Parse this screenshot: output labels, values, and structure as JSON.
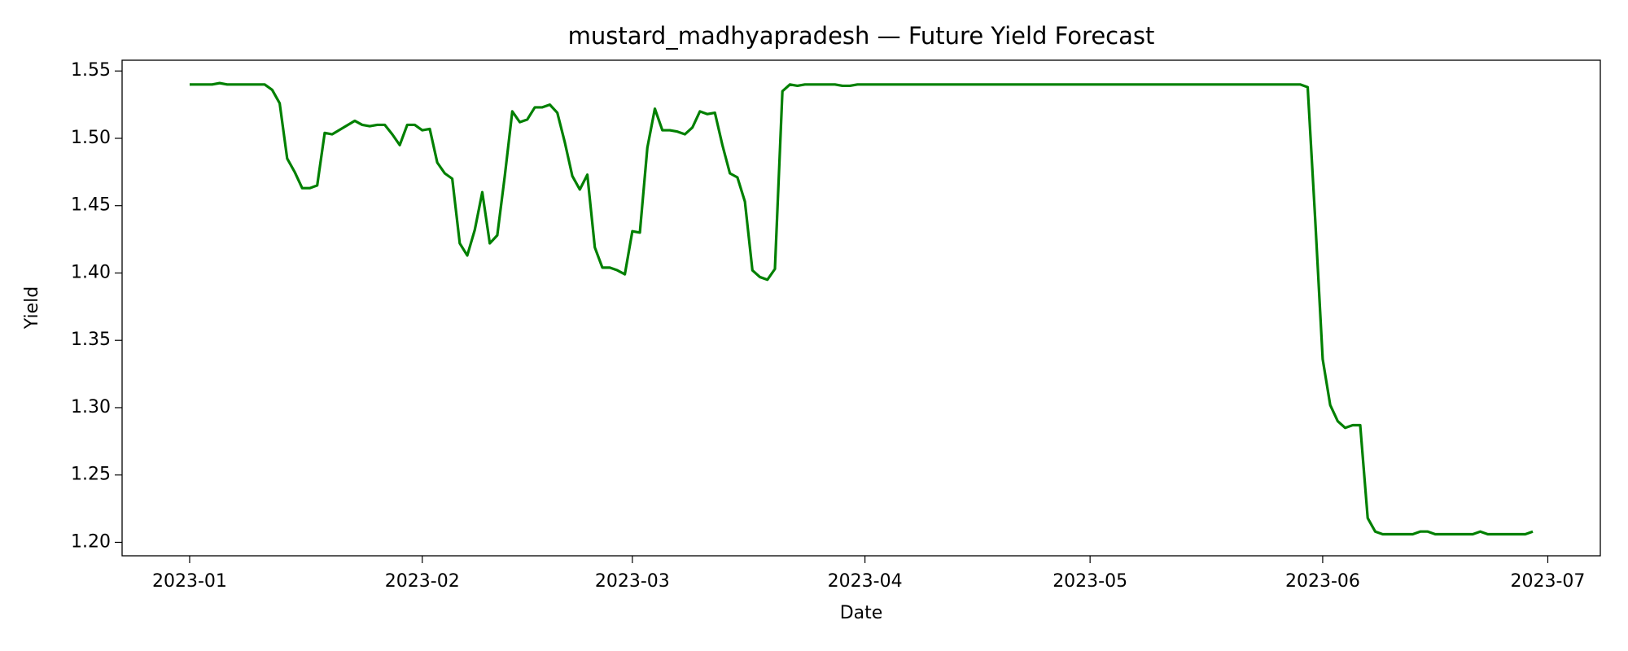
{
  "chart_data": {
    "type": "line",
    "title": "mustard_madhyapradesh — Future Yield Forecast",
    "xlabel": "Date",
    "ylabel": "Yield",
    "color": "#008000",
    "x": [
      "2023-01-01",
      "2023-01-04",
      "2023-01-05",
      "2023-01-06",
      "2023-01-11",
      "2023-01-12",
      "2023-01-13",
      "2023-01-14",
      "2023-01-15",
      "2023-01-16",
      "2023-01-17",
      "2023-01-18",
      "2023-01-19",
      "2023-01-20",
      "2023-01-23",
      "2023-01-24",
      "2023-01-25",
      "2023-01-26",
      "2023-01-27",
      "2023-01-28",
      "2023-01-29",
      "2023-01-30",
      "2023-01-31",
      "2023-02-01",
      "2023-02-02",
      "2023-02-03",
      "2023-02-04",
      "2023-02-05",
      "2023-02-06",
      "2023-02-07",
      "2023-02-08",
      "2023-02-09",
      "2023-02-10",
      "2023-02-11",
      "2023-02-12",
      "2023-02-13",
      "2023-02-14",
      "2023-02-15",
      "2023-02-16",
      "2023-02-17",
      "2023-02-18",
      "2023-02-19",
      "2023-02-20",
      "2023-02-21",
      "2023-02-22",
      "2023-02-23",
      "2023-02-24",
      "2023-02-25",
      "2023-02-26",
      "2023-02-27",
      "2023-02-28",
      "2023-03-01",
      "2023-03-02",
      "2023-03-03",
      "2023-03-04",
      "2023-03-05",
      "2023-03-06",
      "2023-03-07",
      "2023-03-08",
      "2023-03-09",
      "2023-03-10",
      "2023-03-11",
      "2023-03-12",
      "2023-03-13",
      "2023-03-14",
      "2023-03-15",
      "2023-03-16",
      "2023-03-17",
      "2023-03-18",
      "2023-03-19",
      "2023-03-20",
      "2023-03-21",
      "2023-03-22",
      "2023-03-23",
      "2023-03-24",
      "2023-03-28",
      "2023-03-29",
      "2023-03-30",
      "2023-03-31",
      "2023-05-29",
      "2023-05-30",
      "2023-05-31",
      "2023-06-01",
      "2023-06-02",
      "2023-06-03",
      "2023-06-04",
      "2023-06-05",
      "2023-06-06",
      "2023-06-07",
      "2023-06-08",
      "2023-06-09",
      "2023-06-13",
      "2023-06-14",
      "2023-06-15",
      "2023-06-16",
      "2023-06-21",
      "2023-06-22",
      "2023-06-23",
      "2023-06-28",
      "2023-06-29"
    ],
    "values": [
      1.54,
      1.54,
      1.541,
      1.54,
      1.54,
      1.536,
      1.526,
      1.485,
      1.475,
      1.463,
      1.463,
      1.465,
      1.504,
      1.503,
      1.513,
      1.51,
      1.509,
      1.51,
      1.51,
      1.503,
      1.495,
      1.51,
      1.51,
      1.506,
      1.507,
      1.482,
      1.474,
      1.47,
      1.422,
      1.413,
      1.432,
      1.46,
      1.422,
      1.428,
      1.472,
      1.52,
      1.512,
      1.514,
      1.523,
      1.523,
      1.525,
      1.519,
      1.497,
      1.472,
      1.462,
      1.473,
      1.419,
      1.404,
      1.404,
      1.402,
      1.399,
      1.431,
      1.43,
      1.493,
      1.522,
      1.506,
      1.506,
      1.505,
      1.503,
      1.508,
      1.52,
      1.518,
      1.519,
      1.495,
      1.474,
      1.471,
      1.453,
      1.402,
      1.397,
      1.395,
      1.403,
      1.535,
      1.54,
      1.539,
      1.54,
      1.54,
      1.539,
      1.539,
      1.54,
      1.54,
      1.538,
      1.44,
      1.336,
      1.302,
      1.29,
      1.285,
      1.287,
      1.287,
      1.218,
      1.208,
      1.206,
      1.206,
      1.208,
      1.208,
      1.206,
      1.206,
      1.208,
      1.206,
      1.206,
      1.208
    ],
    "xlim": [
      "2022-12-23",
      "2023-07-08"
    ],
    "xticks": [
      "2023-01",
      "2023-02",
      "2023-03",
      "2023-04",
      "2023-05",
      "2023-06",
      "2023-07"
    ],
    "ylim": [
      1.19,
      1.558
    ],
    "yticks": [
      {
        "value": 1.2,
        "label": "1.20"
      },
      1.25,
      {
        "value": 1.3,
        "label": "1.30"
      },
      1.35,
      {
        "value": 1.4,
        "label": "1.40"
      },
      1.45,
      {
        "value": 1.5,
        "label": "1.50"
      },
      1.55
    ],
    "grid": false
  }
}
